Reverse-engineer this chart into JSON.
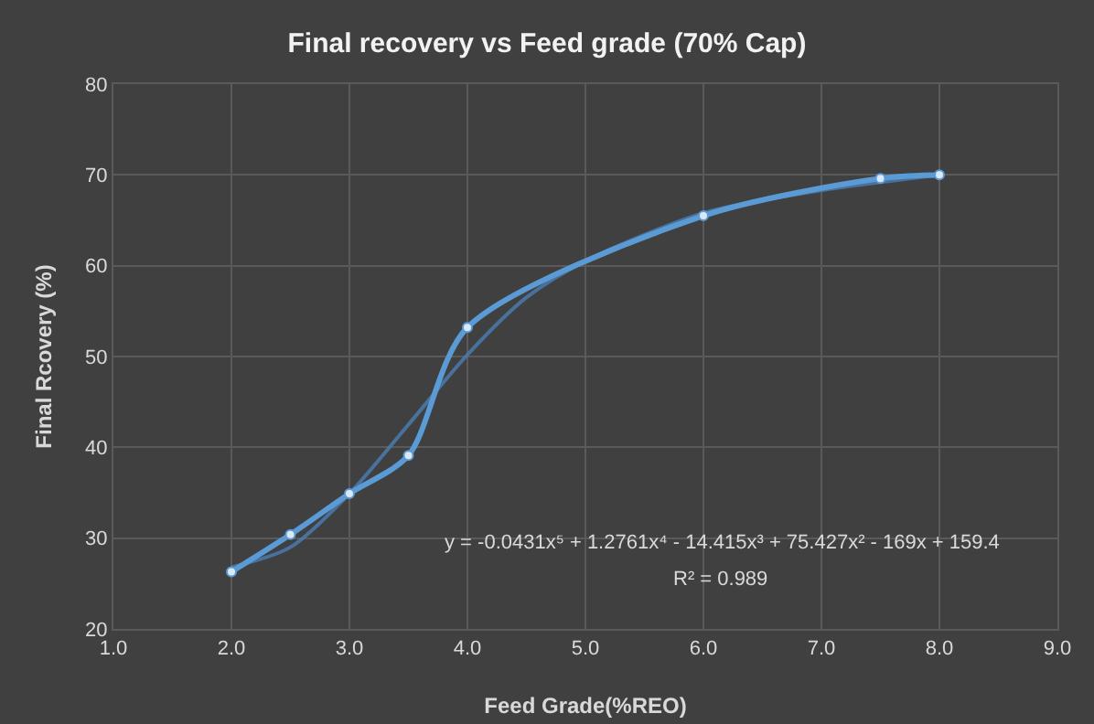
{
  "chart_data": {
    "type": "line",
    "title": "Final recovery vs Feed grade (70% Cap)",
    "xlabel": "Feed Grade(%REO)",
    "ylabel": "Final Rcovery (%)",
    "series": [
      {
        "color": "#5b9bd5",
        "marker": "circle",
        "line_style": "solid",
        "x": [
          2.0,
          2.5,
          3.0,
          3.5,
          4.0,
          6.0,
          7.5,
          8.0
        ],
        "values": [
          26.3,
          30.4,
          34.9,
          39.1,
          53.2,
          65.5,
          69.6,
          70.0
        ]
      },
      {
        "color": "#4a7fb5",
        "marker": "none",
        "line_style": "solid",
        "x": [
          2.0,
          2.5,
          3.0,
          3.5,
          4.0,
          4.5,
          5.0,
          6.0,
          7.0,
          8.0
        ],
        "values": [
          26.8,
          29.0,
          34.9,
          42.5,
          50.2,
          56.5,
          60.5,
          65.8,
          68.3,
          70.0
        ]
      }
    ],
    "annotations": [
      "y = -0.0431x⁵ + 1.2761x⁴ - 14.415x³ + 75.427x² - 169x + 159.4",
      "R² = 0.989"
    ],
    "xlim": [
      1.0,
      9.0
    ],
    "xticks": [
      {
        "value": 1,
        "label": "1.0"
      },
      {
        "value": 2,
        "label": "2.0"
      },
      {
        "value": 3,
        "label": "3.0"
      },
      {
        "value": 4,
        "label": "4.0"
      },
      {
        "value": 5,
        "label": "5.0"
      },
      {
        "value": 6,
        "label": "6.0"
      },
      {
        "value": 7,
        "label": "7.0"
      },
      {
        "value": 8,
        "label": "8.0"
      },
      {
        "value": 9,
        "label": "9.0"
      }
    ],
    "ylim": [
      20,
      80
    ],
    "yticks": [
      20,
      30,
      40,
      50,
      60,
      70,
      80
    ],
    "grid": true
  }
}
